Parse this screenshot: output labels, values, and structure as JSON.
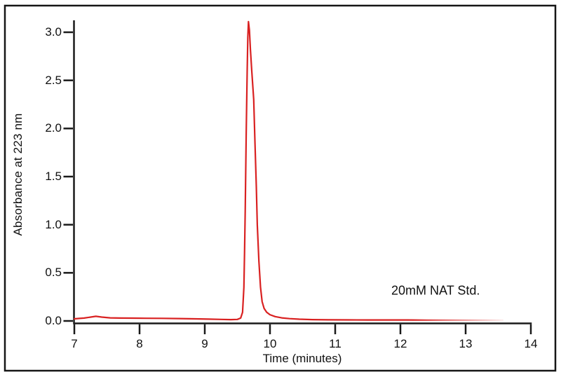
{
  "figure": {
    "background": "#ffffff",
    "border_color": "#161616",
    "axis_color": "#1a1a1a",
    "text_color": "#111111"
  },
  "chart_data": {
    "type": "line",
    "title": "",
    "xlabel": "Time (minutes)",
    "ylabel": "Absorbance at 223 nm",
    "xlim": [
      7,
      14
    ],
    "ylim": [
      0,
      3.12
    ],
    "x_ticks": [
      "7",
      "8",
      "9",
      "10",
      "11",
      "12",
      "13",
      "14"
    ],
    "y_ticks": [
      "0.0",
      "0.5",
      "1.0",
      "1.5",
      "2.0",
      "2.5",
      "3.0"
    ],
    "grid": false,
    "legend": "none",
    "annotation": {
      "text": "20mM NAT Std.",
      "x": 12.54,
      "y": 0.31
    },
    "series": [
      {
        "name": "20mM NAT Std.",
        "color": "#d92121",
        "peak": {
          "time": 9.68,
          "absorbance": 3.11
        },
        "fade": {
          "start": 12.2,
          "end": 13.57,
          "min_opacity": 0.08
        },
        "points": [
          [
            7.0,
            0.022
          ],
          [
            7.08,
            0.026
          ],
          [
            7.15,
            0.03
          ],
          [
            7.25,
            0.04
          ],
          [
            7.33,
            0.048
          ],
          [
            7.42,
            0.04
          ],
          [
            7.55,
            0.032
          ],
          [
            7.7,
            0.03
          ],
          [
            7.9,
            0.029
          ],
          [
            8.1,
            0.028
          ],
          [
            8.35,
            0.027
          ],
          [
            8.6,
            0.025
          ],
          [
            8.85,
            0.022
          ],
          [
            9.05,
            0.019
          ],
          [
            9.25,
            0.016
          ],
          [
            9.4,
            0.014
          ],
          [
            9.5,
            0.016
          ],
          [
            9.55,
            0.03
          ],
          [
            9.58,
            0.09
          ],
          [
            9.6,
            0.35
          ],
          [
            9.61,
            0.7
          ],
          [
            9.62,
            1.15
          ],
          [
            9.635,
            1.95
          ],
          [
            9.65,
            2.6
          ],
          [
            9.66,
            2.95
          ],
          [
            9.67,
            3.11
          ],
          [
            9.685,
            3.02
          ],
          [
            9.7,
            2.82
          ],
          [
            9.72,
            2.6
          ],
          [
            9.75,
            2.3
          ],
          [
            9.77,
            1.85
          ],
          [
            9.79,
            1.4
          ],
          [
            9.805,
            1.0
          ],
          [
            9.83,
            0.62
          ],
          [
            9.855,
            0.35
          ],
          [
            9.88,
            0.2
          ],
          [
            9.91,
            0.13
          ],
          [
            9.95,
            0.09
          ],
          [
            10.0,
            0.065
          ],
          [
            10.08,
            0.045
          ],
          [
            10.18,
            0.032
          ],
          [
            10.3,
            0.024
          ],
          [
            10.45,
            0.018
          ],
          [
            10.65,
            0.014
          ],
          [
            10.9,
            0.012
          ],
          [
            11.2,
            0.011
          ],
          [
            11.5,
            0.01
          ],
          [
            11.8,
            0.01
          ],
          [
            12.1,
            0.01
          ],
          [
            12.4,
            0.009
          ],
          [
            12.7,
            0.009
          ],
          [
            13.0,
            0.008
          ],
          [
            13.3,
            0.008
          ],
          [
            13.57,
            0.008
          ]
        ]
      }
    ]
  }
}
